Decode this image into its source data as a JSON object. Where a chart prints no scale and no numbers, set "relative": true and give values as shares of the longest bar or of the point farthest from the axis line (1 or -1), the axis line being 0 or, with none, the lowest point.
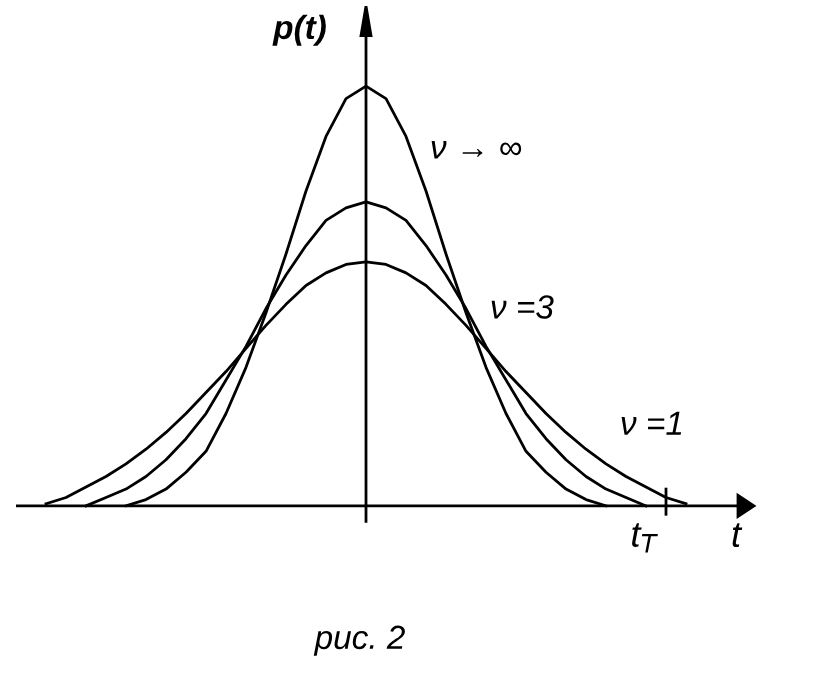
{
  "chart_data": {
    "type": "line",
    "relative": true,
    "xlabel": "t",
    "ylabel": "p(t)",
    "categories": [
      null,
      null,
      null,
      null,
      null,
      null,
      null,
      null,
      null,
      null,
      null,
      null,
      null,
      null,
      null,
      null,
      null,
      null,
      null,
      null,
      null,
      null,
      null,
      null,
      null,
      null,
      null,
      null,
      null,
      null,
      null,
      null,
      null
    ],
    "series": [
      {
        "name": "ν → ∞",
        "color": "#000000",
        "values": [
          null,
          null,
          null,
          null,
          0.0,
          0.015,
          0.04,
          0.08,
          0.13,
          0.22,
          0.33,
          0.46,
          0.6,
          0.75,
          0.88,
          0.97,
          1.0,
          0.97,
          0.88,
          0.75,
          0.6,
          0.46,
          0.33,
          0.22,
          0.13,
          0.08,
          0.04,
          0.015,
          0.0,
          null,
          null,
          null,
          null
        ]
      },
      {
        "name": "ν =3",
        "color": "#000000",
        "values": [
          null,
          null,
          0.0,
          0.02,
          0.04,
          0.07,
          0.11,
          0.16,
          0.22,
          0.3,
          0.38,
          0.47,
          0.55,
          0.62,
          0.68,
          0.71,
          0.724,
          0.71,
          0.68,
          0.62,
          0.55,
          0.47,
          0.38,
          0.3,
          0.22,
          0.16,
          0.11,
          0.07,
          0.04,
          0.02,
          0.0,
          null,
          null
        ]
      },
      {
        "name": "ν =1",
        "color": "#000000",
        "values": [
          0.005,
          0.02,
          0.045,
          0.07,
          0.1,
          0.135,
          0.175,
          0.22,
          0.27,
          0.32,
          0.375,
          0.43,
          0.48,
          0.525,
          0.555,
          0.575,
          0.581,
          0.575,
          0.555,
          0.525,
          0.48,
          0.43,
          0.375,
          0.32,
          0.27,
          0.22,
          0.175,
          0.135,
          0.1,
          0.07,
          0.045,
          0.02,
          0.005
        ]
      }
    ],
    "annotations": [
      "t$_{T}$",
      "рис. 2"
    ]
  }
}
